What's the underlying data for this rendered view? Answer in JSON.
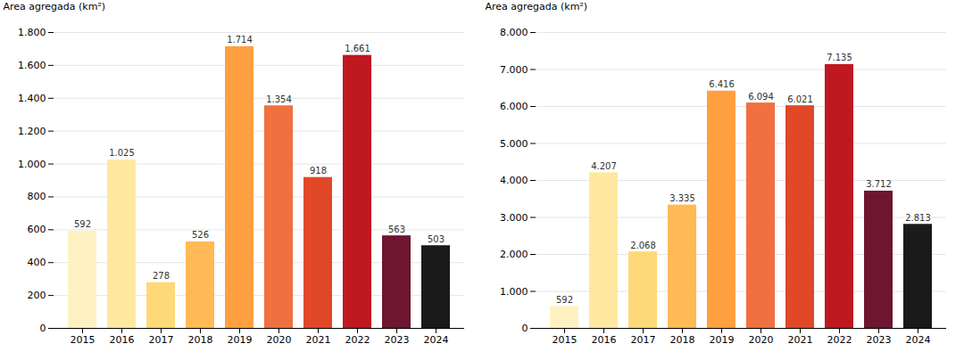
{
  "chart_data": [
    {
      "type": "bar",
      "categories": [
        "2015",
        "2016",
        "2017",
        "2018",
        "2019",
        "2020",
        "2021",
        "2022",
        "2023",
        "2024"
      ],
      "values": [
        592,
        1025,
        278,
        526,
        1714,
        1354,
        918,
        1661,
        563,
        503
      ],
      "value_labels": [
        "592",
        "1.025",
        "278",
        "526",
        "1.714",
        "1.354",
        "918",
        "1.661",
        "563",
        "503"
      ],
      "colors": [
        "#FFF2C2",
        "#FFE8A0",
        "#FFD878",
        "#FFBA55",
        "#FFA040",
        "#F07040",
        "#E04828",
        "#C01820",
        "#6E1530",
        "#1A1A1A"
      ],
      "ylabel": "Area agregada (km²)",
      "ylim": [
        0,
        1800
      ],
      "yticks": [
        0,
        200,
        400,
        600,
        800,
        {
          "value": 1000,
          "label": "1.000"
        },
        {
          "value": 1200,
          "label": "1.200"
        },
        {
          "value": 1400,
          "label": "1.400"
        },
        {
          "value": 1600,
          "label": "1.600"
        },
        {
          "value": 1800,
          "label": "1.800"
        }
      ],
      "grid": true,
      "data_labels": true
    },
    {
      "type": "bar",
      "categories": [
        "2015",
        "2016",
        "2017",
        "2018",
        "2019",
        "2020",
        "2021",
        "2022",
        "2023",
        "2024"
      ],
      "values": [
        592,
        4207,
        2068,
        3335,
        6416,
        6094,
        6021,
        7135,
        3712,
        2813
      ],
      "value_labels": [
        "592",
        "4.207",
        "2.068",
        "3.335",
        "6.416",
        "6.094",
        "6.021",
        "7.135",
        "3.712",
        "2.813"
      ],
      "colors": [
        "#FFF2C2",
        "#FFE8A0",
        "#FFD878",
        "#FFBA55",
        "#FFA040",
        "#F07040",
        "#E04828",
        "#C01820",
        "#6E1530",
        "#1A1A1A"
      ],
      "ylabel": "Area agregada (km²)",
      "ylim": [
        0,
        8000
      ],
      "yticks": [
        0,
        {
          "value": 1000,
          "label": "1.000"
        },
        {
          "value": 2000,
          "label": "2.000"
        },
        {
          "value": 3000,
          "label": "3.000"
        },
        {
          "value": 4000,
          "label": "4.000"
        },
        {
          "value": 5000,
          "label": "5.000"
        },
        {
          "value": 6000,
          "label": "6.000"
        },
        {
          "value": 7000,
          "label": "7.000"
        },
        {
          "value": 8000,
          "label": "8.000"
        }
      ],
      "grid": true,
      "data_labels": true
    }
  ]
}
